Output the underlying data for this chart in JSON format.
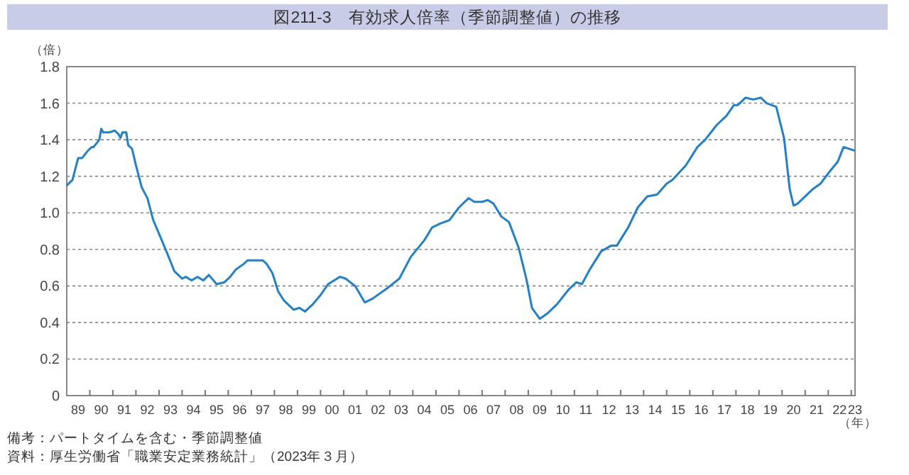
{
  "chart_data": {
    "type": "line",
    "title": "図211-3　有効求人倍率（季節調整値）の推移",
    "ylabel": "（倍）",
    "xlabel": "（年）",
    "annotations": [
      "備考：パートタイムを含む・季節調整値",
      "資料：厚生労働省「職業安定業務統計」（2023年３月）"
    ],
    "xlim": [
      "1989-01",
      "2023-03"
    ],
    "xticks": [
      {
        "value": "1989-07",
        "label": "89"
      },
      {
        "value": "1990-07",
        "label": "90"
      },
      {
        "value": "1991-07",
        "label": "91"
      },
      {
        "value": "1992-07",
        "label": "92"
      },
      {
        "value": "1993-07",
        "label": "93"
      },
      {
        "value": "1994-07",
        "label": "94"
      },
      {
        "value": "1995-07",
        "label": "95"
      },
      {
        "value": "1996-07",
        "label": "96"
      },
      {
        "value": "1997-07",
        "label": "97"
      },
      {
        "value": "1998-07",
        "label": "98"
      },
      {
        "value": "1999-07",
        "label": "99"
      },
      {
        "value": "2000-07",
        "label": "00"
      },
      {
        "value": "2001-07",
        "label": "01"
      },
      {
        "value": "2002-07",
        "label": "02"
      },
      {
        "value": "2003-07",
        "label": "03"
      },
      {
        "value": "2004-07",
        "label": "04"
      },
      {
        "value": "2005-07",
        "label": "05"
      },
      {
        "value": "2006-07",
        "label": "06"
      },
      {
        "value": "2007-07",
        "label": "07"
      },
      {
        "value": "2008-07",
        "label": "08"
      },
      {
        "value": "2009-07",
        "label": "09"
      },
      {
        "value": "2010-07",
        "label": "10"
      },
      {
        "value": "2011-07",
        "label": "11"
      },
      {
        "value": "2012-07",
        "label": "12"
      },
      {
        "value": "2013-07",
        "label": "13"
      },
      {
        "value": "2014-07",
        "label": "14"
      },
      {
        "value": "2015-07",
        "label": "15"
      },
      {
        "value": "2016-07",
        "label": "16"
      },
      {
        "value": "2017-07",
        "label": "17"
      },
      {
        "value": "2018-07",
        "label": "18"
      },
      {
        "value": "2019-07",
        "label": "19"
      },
      {
        "value": "2020-07",
        "label": "20"
      },
      {
        "value": "2021-07",
        "label": "21"
      },
      {
        "value": "2022-07",
        "label": "22"
      },
      {
        "value": "2023-03",
        "label": "23"
      },
      {
        "value": "1990-01",
        "label": null
      },
      {
        "value": "1991-01",
        "label": null
      },
      {
        "value": "1992-01",
        "label": null
      },
      {
        "value": "1993-01",
        "label": null
      },
      {
        "value": "1994-01",
        "label": null
      },
      {
        "value": "1995-01",
        "label": null
      },
      {
        "value": "1996-01",
        "label": null
      },
      {
        "value": "1997-01",
        "label": null
      },
      {
        "value": "1998-01",
        "label": null
      },
      {
        "value": "1999-01",
        "label": null
      },
      {
        "value": "2000-01",
        "label": null
      },
      {
        "value": "2001-01",
        "label": null
      },
      {
        "value": "2002-01",
        "label": null
      },
      {
        "value": "2003-01",
        "label": null
      },
      {
        "value": "2004-01",
        "label": null
      },
      {
        "value": "2005-01",
        "label": null
      },
      {
        "value": "2006-01",
        "label": null
      },
      {
        "value": "2007-01",
        "label": null
      },
      {
        "value": "2008-01",
        "label": null
      },
      {
        "value": "2009-01",
        "label": null
      },
      {
        "value": "2010-01",
        "label": null
      },
      {
        "value": "2011-01",
        "label": null
      },
      {
        "value": "2012-01",
        "label": null
      },
      {
        "value": "2013-01",
        "label": null
      },
      {
        "value": "2014-01",
        "label": null
      },
      {
        "value": "2015-01",
        "label": null
      },
      {
        "value": "2016-01",
        "label": null
      },
      {
        "value": "2017-01",
        "label": null
      },
      {
        "value": "2018-01",
        "label": null
      },
      {
        "value": "2019-01",
        "label": null
      },
      {
        "value": "2020-01",
        "label": null
      },
      {
        "value": "2021-01",
        "label": null
      },
      {
        "value": "2022-01",
        "label": null
      },
      {
        "value": "2023-01",
        "label": null
      }
    ],
    "ylim": [
      0,
      1.8
    ],
    "yticks": [
      0,
      {
        "value": 0.2,
        "label": "0.2"
      },
      {
        "value": 0.4,
        "label": "0.4"
      },
      {
        "value": 0.6,
        "label": "0.6"
      },
      {
        "value": 0.8,
        "label": "0.8"
      },
      {
        "value": 1.0,
        "label": "1.0"
      },
      {
        "value": 1.2,
        "label": "1.2"
      },
      {
        "value": 1.4,
        "label": "1.4"
      },
      {
        "value": 1.6,
        "label": "1.6"
      },
      {
        "value": 1.8,
        "label": "1.8"
      }
    ],
    "grid": "y",
    "marker": "none",
    "line_style": "solid",
    "series": [
      {
        "color": "#1f80d0",
        "x": [
          "1989-01",
          "1989-04",
          "1989-06",
          "1989-07",
          "1989-09",
          "1989-12",
          "1990-02",
          "1990-03",
          "1990-06",
          "1990-07",
          "1990-08",
          "1990-11",
          "1991-02",
          "1991-04",
          "1991-05",
          "1991-06",
          "1991-08",
          "1991-09",
          "1991-11",
          "1992-01",
          "1992-04",
          "1992-07",
          "1992-10",
          "1993-02",
          "1993-06",
          "1993-09",
          "1994-01",
          "1994-03",
          "1994-06",
          "1994-09",
          "1994-12",
          "1995-03",
          "1995-07",
          "1995-11",
          "1996-02",
          "1996-05",
          "1996-09",
          "1996-11",
          "1997-07",
          "1997-09",
          "1997-12",
          "1998-03",
          "1998-06",
          "1998-11",
          "1999-02",
          "1999-05",
          "1999-09",
          "2000-01",
          "2000-05",
          "2000-11",
          "2001-02",
          "2001-07",
          "2001-12",
          "2002-04",
          "2002-12",
          "2003-06",
          "2003-12",
          "2004-07",
          "2004-11",
          "2005-03",
          "2005-08",
          "2006-01",
          "2006-06",
          "2006-09",
          "2007-01",
          "2007-04",
          "2007-07",
          "2007-11",
          "2008-03",
          "2008-08",
          "2008-12",
          "2009-03",
          "2009-07",
          "2009-11",
          "2010-04",
          "2010-10",
          "2011-02",
          "2011-05",
          "2011-09",
          "2012-03",
          "2012-08",
          "2012-11",
          "2013-05",
          "2013-10",
          "2014-03",
          "2014-08",
          "2015-01",
          "2015-04",
          "2015-11",
          "2016-05",
          "2016-09",
          "2017-03",
          "2017-08",
          "2017-12",
          "2018-02",
          "2018-06",
          "2018-10",
          "2019-02",
          "2019-05",
          "2019-10",
          "2020-02",
          "2020-05",
          "2020-07",
          "2020-09",
          "2021-02",
          "2021-05",
          "2021-09",
          "2022-02",
          "2022-06",
          "2022-09",
          "2023-03"
        ],
        "values": [
          1.15,
          1.18,
          1.26,
          1.3,
          1.3,
          1.34,
          1.36,
          1.36,
          1.4,
          1.46,
          1.44,
          1.44,
          1.45,
          1.43,
          1.41,
          1.44,
          1.44,
          1.37,
          1.35,
          1.26,
          1.14,
          1.08,
          0.96,
          0.86,
          0.76,
          0.68,
          0.64,
          0.65,
          0.63,
          0.65,
          0.63,
          0.66,
          0.61,
          0.62,
          0.65,
          0.69,
          0.72,
          0.74,
          0.74,
          0.72,
          0.67,
          0.57,
          0.52,
          0.47,
          0.48,
          0.46,
          0.5,
          0.55,
          0.61,
          0.65,
          0.64,
          0.6,
          0.51,
          0.53,
          0.59,
          0.64,
          0.76,
          0.85,
          0.92,
          0.94,
          0.96,
          1.03,
          1.08,
          1.06,
          1.06,
          1.07,
          1.05,
          0.98,
          0.95,
          0.81,
          0.64,
          0.48,
          0.42,
          0.45,
          0.5,
          0.58,
          0.62,
          0.61,
          0.69,
          0.79,
          0.82,
          0.82,
          0.92,
          1.03,
          1.09,
          1.1,
          1.16,
          1.18,
          1.26,
          1.36,
          1.4,
          1.48,
          1.53,
          1.59,
          1.59,
          1.63,
          1.62,
          1.63,
          1.6,
          1.58,
          1.41,
          1.13,
          1.04,
          1.05,
          1.1,
          1.13,
          1.16,
          1.23,
          1.28,
          1.36,
          1.34
        ]
      }
    ]
  }
}
